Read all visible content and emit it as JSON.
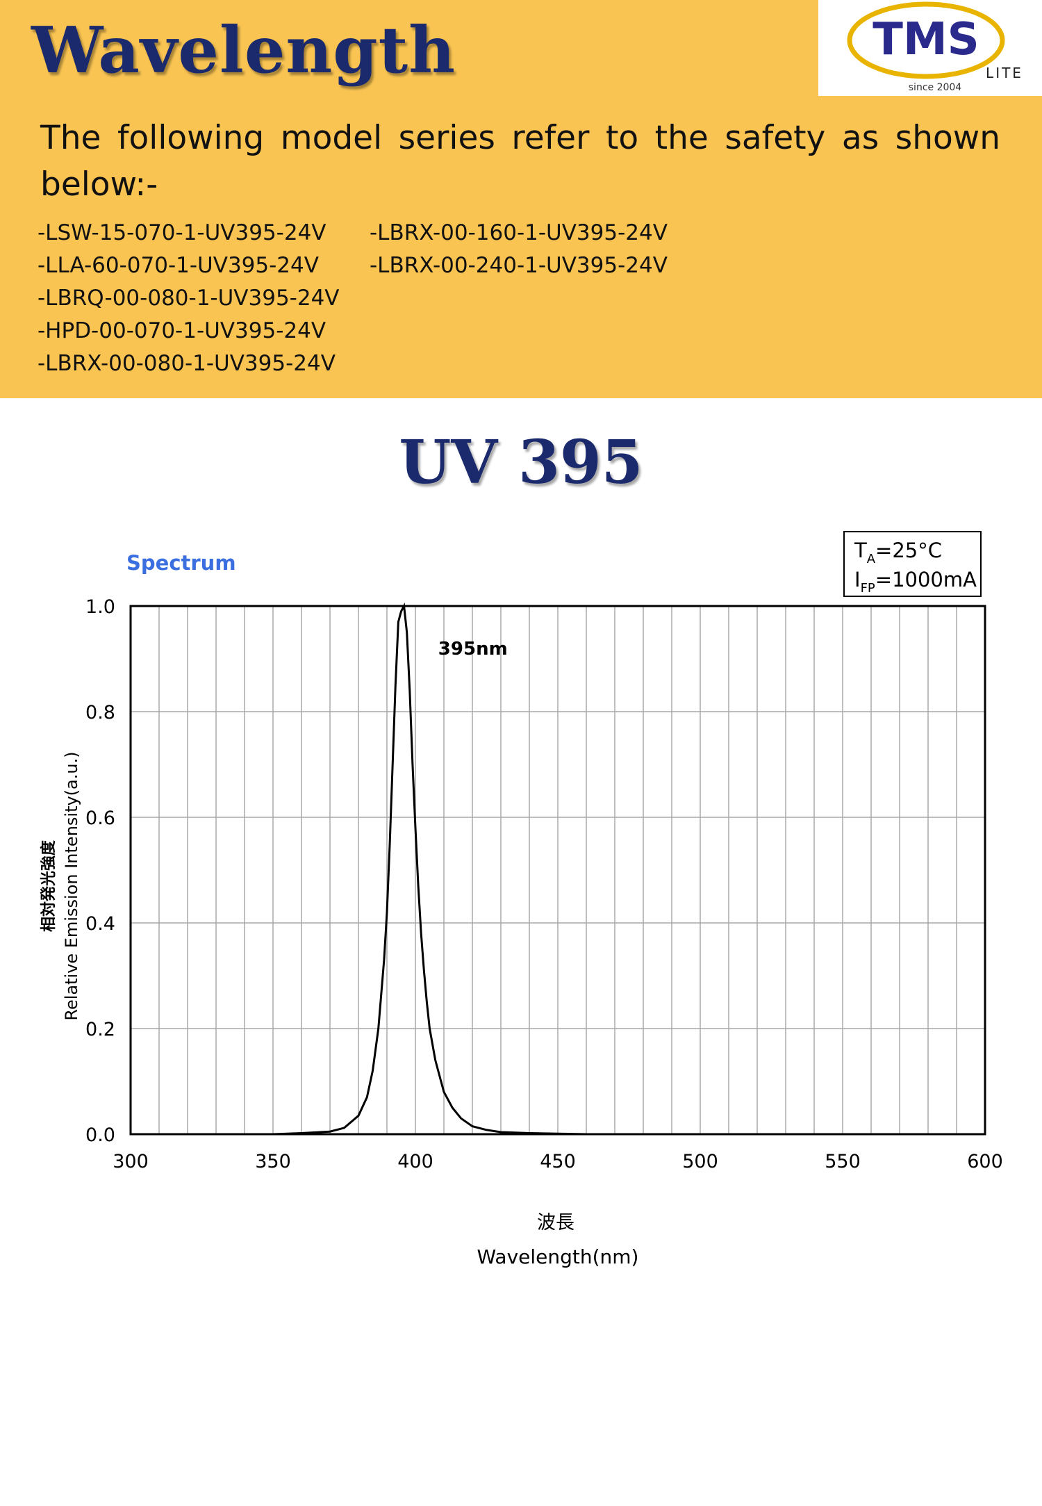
{
  "header": {
    "title": "Wavelength",
    "logo": {
      "brand": "TMS",
      "suffix": "LITE",
      "since": "since 2004"
    },
    "intro": "The following model series refer to the safety as shown below:-",
    "models_col1": [
      "-LSW-15-070-1-UV395-24V",
      "-LLA-60-070-1-UV395-24V",
      "-LBRQ-00-080-1-UV395-24V",
      "-HPD-00-070-1-UV395-24V",
      "-LBRX-00-080-1-UV395-24V"
    ],
    "models_col2": [
      "-LBRX-00-160-1-UV395-24V",
      "-LBRX-00-240-1-UV395-24V"
    ]
  },
  "chart_heading": "UV 395",
  "colors": {
    "header_bg": "#f9c452",
    "title_navy": "#1a2a6c",
    "spectrum_blue": "#3b6fe0",
    "logo_ring": "#e8b400",
    "grid": "#a8a8a8"
  },
  "chart_data": {
    "type": "line",
    "title": "Spectrum",
    "xlabel": "Wavelength(nm)",
    "xlabel_cjk": "波長",
    "ylabel": "Relative Emission Intensity(a.u.)",
    "ylabel_cjk": "相対発光強度",
    "xlim": [
      300,
      600
    ],
    "ylim": [
      0,
      1.0
    ],
    "x_ticks": [
      "300",
      "350",
      "400",
      "450",
      "500",
      "550",
      "600"
    ],
    "y_ticks": [
      "0.0",
      "0.2",
      "0.4",
      "0.6",
      "0.8",
      "1.0"
    ],
    "grid": true,
    "conditions": [
      "T_A=25°C",
      "I_FP=1000mA"
    ],
    "annotation": "395nm",
    "series": [
      {
        "x": [
          300,
          350,
          360,
          370,
          375,
          380,
          383,
          385,
          387,
          389,
          390,
          391,
          392,
          393,
          394,
          395,
          396,
          397,
          398,
          399,
          400,
          401,
          402,
          403,
          404,
          405,
          407,
          410,
          413,
          416,
          420,
          425,
          430,
          440,
          460,
          500,
          600
        ],
        "y": [
          0.0,
          0.0,
          0.002,
          0.005,
          0.012,
          0.035,
          0.07,
          0.12,
          0.2,
          0.33,
          0.42,
          0.55,
          0.7,
          0.85,
          0.97,
          0.99,
          1.0,
          0.95,
          0.84,
          0.7,
          0.58,
          0.47,
          0.38,
          0.31,
          0.25,
          0.2,
          0.14,
          0.08,
          0.05,
          0.03,
          0.015,
          0.008,
          0.004,
          0.002,
          0.0,
          0.0,
          0.0
        ]
      }
    ]
  }
}
